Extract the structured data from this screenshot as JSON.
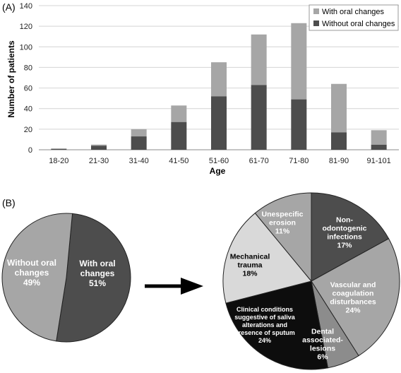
{
  "panel_a_label": "(A)",
  "panel_b_label": "(B)",
  "colors": {
    "with": "#a6a6a6",
    "without": "#4d4d4d",
    "slice_dark": "#4d4d4d",
    "slice_mid": "#a6a6a6",
    "slice_light": "#d9d9d9",
    "slice_black": "#0d0d0d",
    "slice_gray": "#8c8c8c"
  },
  "chart_data": [
    {
      "type": "bar",
      "stacked": true,
      "categories": [
        "18-20",
        "21-30",
        "31-40",
        "41-50",
        "51-60",
        "61-70",
        "71-80",
        "81-90",
        "91-101"
      ],
      "series": [
        {
          "name": "Without oral changes",
          "values": [
            1,
            4,
            13,
            27,
            52,
            63,
            49,
            17,
            5
          ]
        },
        {
          "name": "With oral changes",
          "values": [
            0,
            1,
            7,
            16,
            33,
            49,
            74,
            47,
            14
          ]
        }
      ],
      "xlabel": "Age",
      "ylabel": "Number of patients",
      "ylim": [
        0,
        140
      ],
      "yticks": [
        "0",
        "20",
        "40",
        "60",
        "80",
        "100",
        "120",
        "140"
      ],
      "legend_position": "top-right",
      "legend": [
        "With oral changes",
        "Without oral changes"
      ],
      "grid": true
    },
    {
      "type": "pie",
      "slices": [
        {
          "label": [
            "With oral",
            "changes",
            "51%"
          ],
          "value": 51
        },
        {
          "label": [
            "Without oral",
            "changes",
            "49%"
          ],
          "value": 49
        }
      ]
    },
    {
      "type": "pie",
      "slices": [
        {
          "label": [
            "Non-",
            "odontogenic",
            "infections",
            "17%"
          ],
          "value": 17
        },
        {
          "label": [
            "Vascular and",
            "coagulation",
            "disturbances",
            "24%"
          ],
          "value": 24
        },
        {
          "label": [
            "Dental",
            "associated-",
            "lesions",
            "6%"
          ],
          "value": 6
        },
        {
          "label": [
            "Clinical conditions",
            "suggestive of saliva",
            "alterations and",
            "presence of sputum",
            "24%"
          ],
          "value": 24
        },
        {
          "label": [
            "Mechanical",
            "trauma",
            "18%"
          ],
          "value": 18
        },
        {
          "label": [
            "Unespecific",
            "erosion",
            "11%"
          ],
          "value": 11
        }
      ]
    }
  ]
}
